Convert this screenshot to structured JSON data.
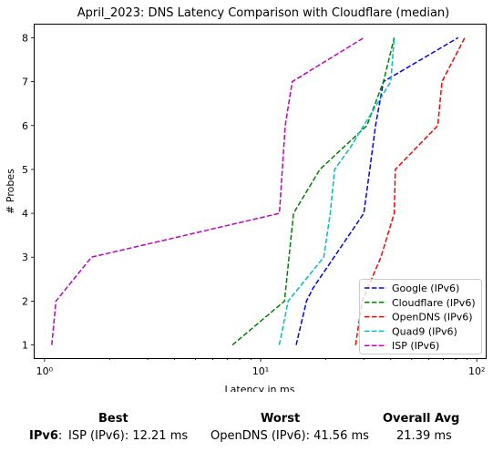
{
  "chart_data": {
    "type": "line",
    "title": "April_2023: DNS Latency Comparison with Cloudflare (median)",
    "xlabel": "Latency in ms",
    "ylabel": "# Probes",
    "xscale": "log",
    "xlim": [
      0.9,
      110
    ],
    "ylim": [
      0.7,
      8.3
    ],
    "xticks": [
      {
        "value": 1,
        "label": "10⁰"
      },
      {
        "value": 10,
        "label": "10¹"
      },
      {
        "value": 100,
        "label": "10²"
      }
    ],
    "yticks": [
      1,
      2,
      3,
      4,
      5,
      6,
      7,
      8
    ],
    "grid": false,
    "legend_position": "bottom-right",
    "series": [
      {
        "name": "Google (IPv6)",
        "color": "#0000ff",
        "dash": "dashed",
        "points": [
          [
            14.6,
            1
          ],
          [
            16.3,
            2
          ],
          [
            17.5,
            2.3
          ],
          [
            30,
            4
          ],
          [
            32,
            5
          ],
          [
            34,
            6
          ],
          [
            37,
            7
          ],
          [
            82,
            8
          ]
        ]
      },
      {
        "name": "Cloudflare (IPv6)",
        "color": "#008000",
        "dash": "dashed",
        "points": [
          [
            7.4,
            1
          ],
          [
            12.9,
            2
          ],
          [
            14.2,
            4
          ],
          [
            18.8,
            5
          ],
          [
            31,
            6
          ],
          [
            37,
            7
          ],
          [
            41.5,
            8
          ]
        ]
      },
      {
        "name": "OpenDNS (IPv6)",
        "color": "#ff0000",
        "dash": "dashed",
        "points": [
          [
            27.5,
            1
          ],
          [
            29.5,
            2
          ],
          [
            36,
            3
          ],
          [
            41.5,
            4
          ],
          [
            42,
            5
          ],
          [
            66,
            6
          ],
          [
            69,
            7
          ],
          [
            88,
            8
          ]
        ]
      },
      {
        "name": "Quad9 (IPv6)",
        "color": "#00bfbf",
        "dash": "dashed",
        "points": [
          [
            12.2,
            1
          ],
          [
            13.4,
            2
          ],
          [
            19.6,
            3
          ],
          [
            21,
            4
          ],
          [
            22,
            5
          ],
          [
            26,
            5.5
          ],
          [
            40,
            7
          ],
          [
            41.5,
            8
          ]
        ]
      },
      {
        "name": "ISP (IPv6)",
        "color": "#bf00bf",
        "dash": "dashed",
        "points": [
          [
            1.08,
            1
          ],
          [
            1.13,
            2
          ],
          [
            1.65,
            3
          ],
          [
            12.21,
            4
          ],
          [
            12.6,
            5
          ],
          [
            13,
            6
          ],
          [
            14,
            7
          ],
          [
            30,
            8
          ]
        ]
      }
    ]
  },
  "summary": {
    "headers": {
      "best": "Best",
      "worst": "Worst",
      "overall": "Overall Avg"
    },
    "row_label": "IPv6",
    "separator": ":",
    "best": "ISP (IPv6): 12.21 ms",
    "worst": "OpenDNS (IPv6): 41.56 ms",
    "overall": "21.39 ms"
  }
}
